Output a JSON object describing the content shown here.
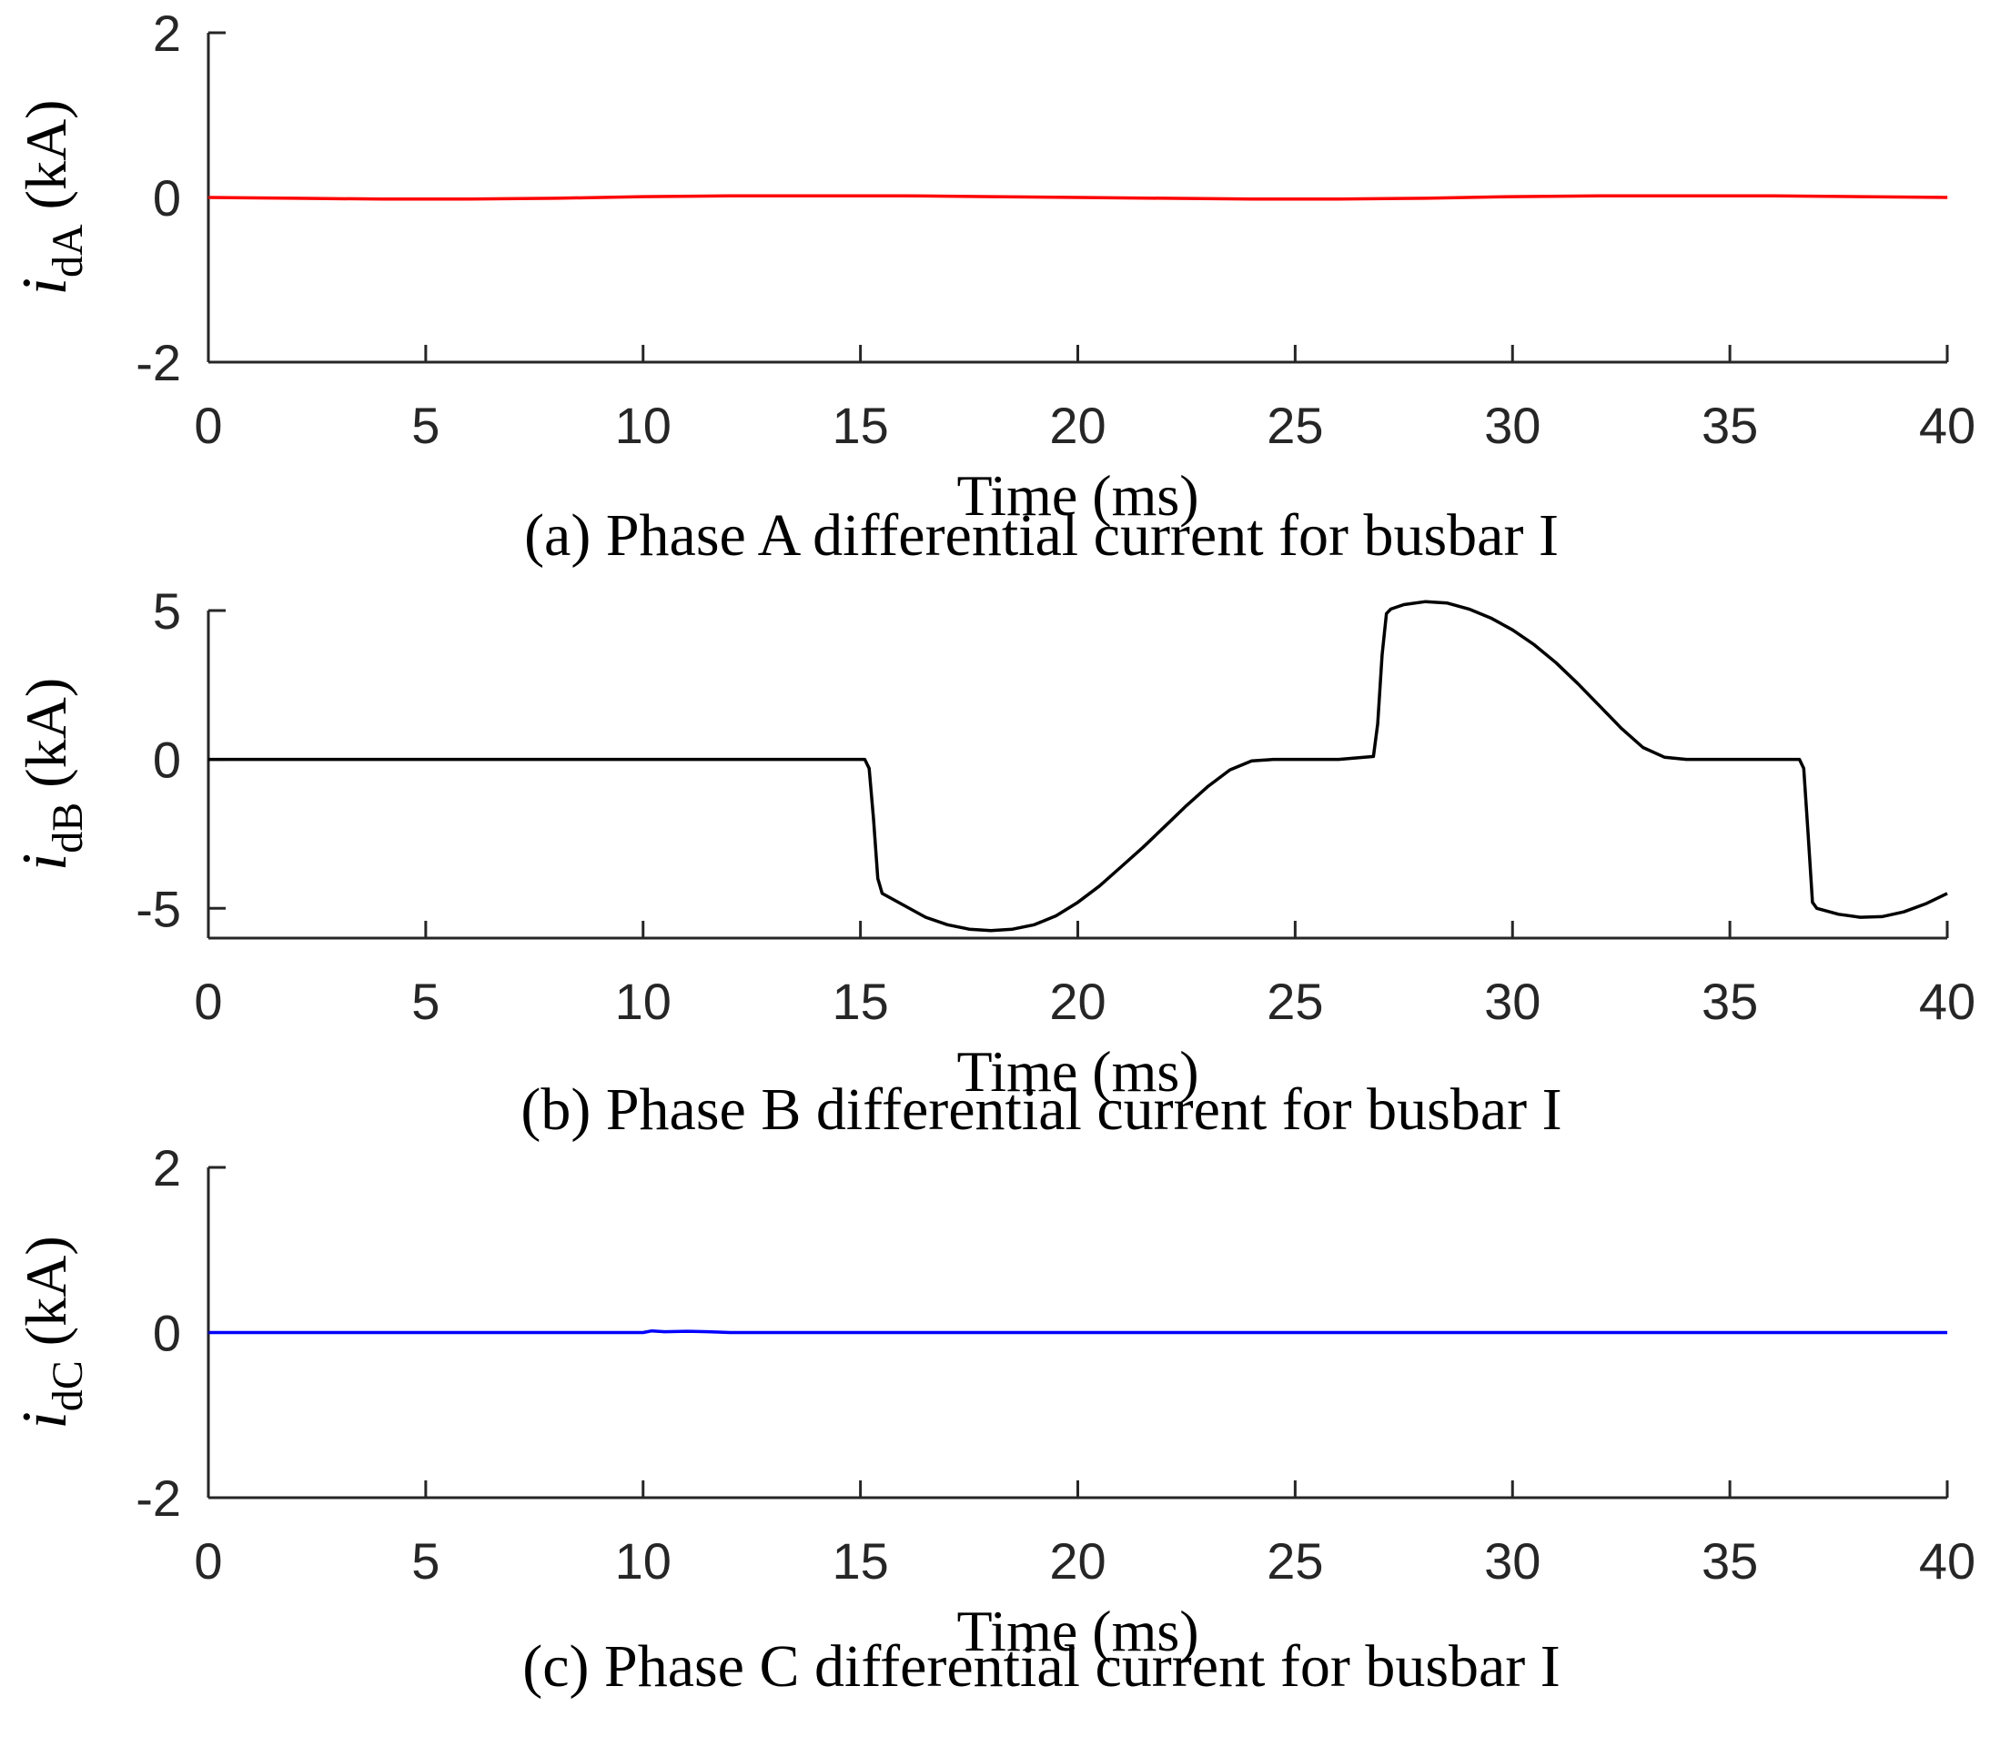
{
  "chart_data": [
    {
      "type": "line",
      "id": "phase-a",
      "caption": "(a) Phase A differential current for busbar I",
      "xlabel": "Time (ms)",
      "ylabel_var": "i",
      "ylabel_sub": "dA",
      "ylabel_unit": "(kA)",
      "xlim": [
        0,
        40
      ],
      "ylim": [
        -2,
        2
      ],
      "xticks": [
        0,
        5,
        10,
        15,
        20,
        25,
        30,
        35,
        40
      ],
      "yticks": [
        -2,
        0,
        2
      ],
      "color": "#ff0000",
      "series": [
        {
          "name": "i_dA",
          "x": [
            0,
            2,
            4,
            6,
            8,
            10,
            12,
            14,
            16,
            18,
            20,
            22,
            24,
            26,
            28,
            30,
            32,
            34,
            36,
            38,
            40
          ],
          "y": [
            0.0,
            -0.01,
            -0.02,
            -0.02,
            -0.01,
            0.01,
            0.02,
            0.02,
            0.02,
            0.01,
            0.0,
            -0.01,
            -0.02,
            -0.02,
            -0.01,
            0.01,
            0.02,
            0.02,
            0.02,
            0.01,
            0.0
          ]
        }
      ]
    },
    {
      "type": "line",
      "id": "phase-b",
      "caption": "(b) Phase B differential current for busbar I",
      "xlabel": "Time (ms)",
      "ylabel_var": "i",
      "ylabel_sub": "dB",
      "ylabel_unit": "(kA)",
      "xlim": [
        0,
        40
      ],
      "ylim": [
        -6,
        5
      ],
      "xticks": [
        0,
        5,
        10,
        15,
        20,
        25,
        30,
        35,
        40
      ],
      "yticks": [
        -5,
        0,
        5
      ],
      "color": "#000000",
      "series": [
        {
          "name": "i_dB",
          "x": [
            0,
            15.1,
            15.2,
            15.3,
            15.4,
            15.5,
            16,
            16.5,
            17,
            17.5,
            18,
            18.5,
            19,
            19.5,
            20,
            20.5,
            21,
            21.5,
            22,
            22.5,
            23,
            23.5,
            24,
            24.5,
            25,
            26,
            26.8,
            26.9,
            27.0,
            27.1,
            27.2,
            27.5,
            28,
            28.5,
            29,
            29.5,
            30,
            30.5,
            31,
            31.5,
            32,
            32.5,
            33,
            33.5,
            34,
            35,
            36.6,
            36.7,
            36.8,
            36.9,
            37.0,
            37.5,
            38,
            38.5,
            39,
            39.5,
            40
          ],
          "y": [
            0,
            0,
            -0.3,
            -2.0,
            -4.0,
            -4.5,
            -4.9,
            -5.3,
            -5.55,
            -5.7,
            -5.75,
            -5.7,
            -5.55,
            -5.25,
            -4.8,
            -4.25,
            -3.6,
            -2.95,
            -2.25,
            -1.55,
            -0.9,
            -0.35,
            -0.05,
            0,
            0,
            0,
            0.1,
            1.2,
            3.5,
            4.9,
            5.05,
            5.2,
            5.3,
            5.25,
            5.05,
            4.75,
            4.35,
            3.85,
            3.25,
            2.55,
            1.8,
            1.05,
            0.4,
            0.07,
            0,
            0,
            0,
            -0.3,
            -2.5,
            -4.8,
            -5.0,
            -5.2,
            -5.3,
            -5.28,
            -5.12,
            -4.85,
            -4.5
          ]
        }
      ]
    },
    {
      "type": "line",
      "id": "phase-c",
      "caption": "(c) Phase C differential current for busbar I",
      "xlabel": "Time (ms)",
      "ylabel_var": "i",
      "ylabel_sub": "dC",
      "ylabel_unit": "(kA)",
      "xlim": [
        0,
        40
      ],
      "ylim": [
        -2,
        2
      ],
      "xticks": [
        0,
        5,
        10,
        15,
        20,
        25,
        30,
        35,
        40
      ],
      "yticks": [
        -2,
        0,
        2
      ],
      "color": "#0000ff",
      "series": [
        {
          "name": "i_dC",
          "x": [
            0,
            10,
            10.2,
            10.5,
            11,
            11.5,
            12,
            40
          ],
          "y": [
            0,
            0,
            0.02,
            0.01,
            0.015,
            0.01,
            0,
            0
          ]
        }
      ]
    }
  ]
}
